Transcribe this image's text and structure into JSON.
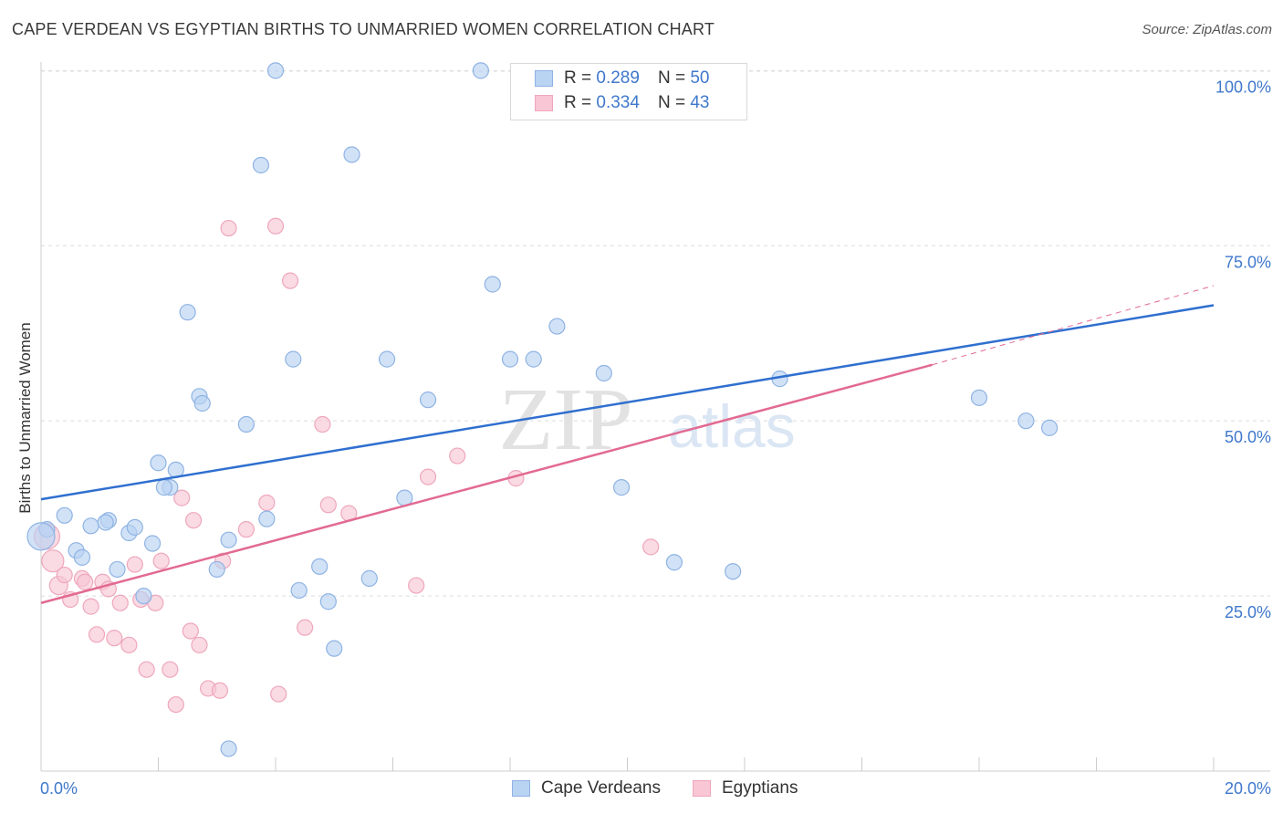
{
  "title": "CAPE VERDEAN VS EGYPTIAN BIRTHS TO UNMARRIED WOMEN CORRELATION CHART",
  "source": "Source: ZipAtlas.com",
  "watermark": {
    "zip": "ZIP",
    "atlas": "atlas"
  },
  "legend_top": [
    {
      "r_label": "R =",
      "r_value": "0.289",
      "n_label": "N =",
      "n_value": "50"
    },
    {
      "r_label": "R =",
      "r_value": "0.334",
      "n_label": "N =",
      "n_value": "43"
    }
  ],
  "legend_bottom": [
    {
      "label": "Cape Verdeans"
    },
    {
      "label": "Egyptians"
    }
  ],
  "colors": {
    "blue_fill": "#b9d3f3",
    "blue_stroke": "#8fb3e3",
    "blue_line": "#2f6fcf",
    "pink_fill": "#f8c6d4",
    "pink_stroke": "#eea7bc",
    "pink_line": "#e26a92",
    "tick_label": "#3f78cc",
    "grid": "#dedede"
  },
  "chart_data": {
    "type": "scatter",
    "title": "CAPE VERDEAN VS EGYPTIAN BIRTHS TO UNMARRIED WOMEN CORRELATION CHART",
    "xlabel": "",
    "ylabel": "Births to Unmarried Women",
    "xlim": [
      0,
      20
    ],
    "ylim": [
      0,
      102
    ],
    "x_tick_labels": [
      "0.0%",
      "20.0%"
    ],
    "y_ticks": [
      25,
      50,
      75,
      100
    ],
    "y_tick_labels": [
      "25.0%",
      "50.0%",
      "75.0%",
      "100.0%"
    ],
    "grid": "horizontal dashed",
    "legend_position": "top-center",
    "series": [
      {
        "name": "Cape Verdeans",
        "color": "#b9d3f3",
        "points": [
          [
            0.1,
            34.5
          ],
          [
            0.4,
            36.5
          ],
          [
            0.6,
            31.5
          ],
          [
            0.7,
            30.5
          ],
          [
            0.85,
            35.0
          ],
          [
            1.15,
            35.8
          ],
          [
            1.3,
            28.8
          ],
          [
            1.5,
            34.0
          ],
          [
            1.6,
            34.8
          ],
          [
            1.75,
            25.0
          ],
          [
            1.9,
            32.5
          ],
          [
            2.0,
            44.0
          ],
          [
            2.2,
            40.5
          ],
          [
            2.3,
            43.0
          ],
          [
            2.5,
            65.5
          ],
          [
            2.7,
            53.5
          ],
          [
            2.75,
            52.5
          ],
          [
            3.0,
            28.8
          ],
          [
            3.2,
            33.0
          ],
          [
            3.5,
            49.5
          ],
          [
            3.75,
            86.5
          ],
          [
            3.85,
            36.0
          ],
          [
            4.0,
            100.0
          ],
          [
            4.3,
            58.8
          ],
          [
            4.4,
            25.8
          ],
          [
            4.75,
            29.2
          ],
          [
            4.9,
            24.2
          ],
          [
            5.0,
            17.5
          ],
          [
            5.3,
            88.0
          ],
          [
            5.6,
            27.5
          ],
          [
            5.9,
            58.8
          ],
          [
            6.2,
            39.0
          ],
          [
            6.6,
            53.0
          ],
          [
            7.5,
            100.0
          ],
          [
            7.7,
            69.5
          ],
          [
            8.0,
            58.8
          ],
          [
            8.4,
            58.8
          ],
          [
            8.8,
            63.5
          ],
          [
            9.6,
            56.8
          ],
          [
            9.9,
            40.5
          ],
          [
            10.8,
            29.8
          ],
          [
            11.8,
            28.5
          ],
          [
            12.6,
            56.0
          ],
          [
            16.0,
            53.3
          ],
          [
            16.8,
            50.0
          ],
          [
            17.2,
            49.0
          ],
          [
            3.2,
            3.2
          ],
          [
            0.0,
            33.5
          ],
          [
            1.1,
            35.5
          ],
          [
            2.1,
            40.5
          ]
        ]
      },
      {
        "name": "Egyptians",
        "color": "#f8c6d4",
        "points": [
          [
            0.1,
            33.5
          ],
          [
            0.2,
            30.0
          ],
          [
            0.3,
            26.5
          ],
          [
            0.4,
            28.0
          ],
          [
            0.5,
            24.5
          ],
          [
            0.7,
            27.5
          ],
          [
            0.75,
            27.0
          ],
          [
            0.85,
            23.5
          ],
          [
            0.95,
            19.5
          ],
          [
            1.05,
            27.0
          ],
          [
            1.15,
            26.0
          ],
          [
            1.25,
            19.0
          ],
          [
            1.35,
            24.0
          ],
          [
            1.5,
            18.0
          ],
          [
            1.6,
            29.5
          ],
          [
            1.7,
            24.5
          ],
          [
            1.8,
            14.5
          ],
          [
            1.95,
            24.0
          ],
          [
            2.05,
            30.0
          ],
          [
            2.2,
            14.5
          ],
          [
            2.3,
            9.5
          ],
          [
            2.4,
            39.0
          ],
          [
            2.55,
            20.0
          ],
          [
            2.6,
            35.8
          ],
          [
            2.7,
            18.0
          ],
          [
            2.85,
            11.8
          ],
          [
            3.05,
            11.5
          ],
          [
            3.1,
            30.0
          ],
          [
            3.2,
            77.5
          ],
          [
            3.5,
            34.5
          ],
          [
            3.85,
            38.3
          ],
          [
            4.0,
            77.8
          ],
          [
            4.05,
            11.0
          ],
          [
            4.25,
            70.0
          ],
          [
            4.5,
            20.5
          ],
          [
            4.8,
            49.5
          ],
          [
            4.9,
            38.0
          ],
          [
            5.25,
            36.8
          ],
          [
            6.4,
            26.5
          ],
          [
            6.6,
            42.0
          ],
          [
            7.1,
            45.0
          ],
          [
            8.1,
            41.8
          ],
          [
            10.4,
            32.0
          ]
        ]
      }
    ],
    "trendlines": [
      {
        "series": "Cape Verdeans",
        "from": [
          0,
          38.8
        ],
        "to": [
          20,
          66.5
        ]
      },
      {
        "series": "Egyptians",
        "from": [
          0,
          24.0
        ],
        "to": [
          15.2,
          58.0
        ],
        "extension_to": [
          20,
          69.3
        ]
      }
    ]
  },
  "axes": {
    "y_title": "Births to Unmarried Women"
  }
}
